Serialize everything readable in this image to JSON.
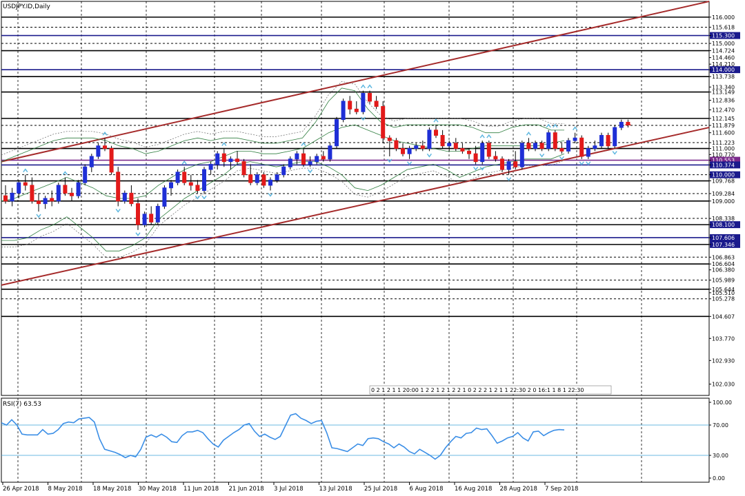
{
  "chart_data": [
    {
      "type": "candlestick",
      "title": "USDJPY.ID,Daily",
      "ylim": [
        101.6,
        116.6
      ],
      "y_ticks": [
        "116.000",
        "115.618",
        "115.300",
        "115.000",
        "114.724",
        "114.460",
        "114.210",
        "114.000",
        "113.738",
        "113.340",
        "113.149",
        "112.836",
        "112.470",
        "112.145",
        "111.879",
        "111.600",
        "111.223",
        "111.000",
        "110.770",
        "110.553",
        "110.374",
        "110.000",
        "109.768",
        "109.284",
        "109.000",
        "108.338",
        "108.100",
        "107.606",
        "107.346",
        "106.863",
        "106.604",
        "106.380",
        "105.989",
        "105.644",
        "105.510",
        "105.278",
        "104.607",
        "103.770",
        "102.930",
        "102.030"
      ],
      "x_labels": [
        "26 Apr 2018",
        "8 May 2018",
        "18 May 2018",
        "30 May 2018",
        "11 Jun 2018",
        "21 Jun 2018",
        "3 Jul 2018",
        "13 Jul 2018",
        "25 Jul 2018",
        "6 Aug 2018",
        "16 Aug 2018",
        "28 Aug 2018",
        "7 Sep 2018"
      ],
      "horizontal_levels": [
        {
          "value": 116.0,
          "color": "#000000"
        },
        {
          "value": 115.618,
          "color": "#000000",
          "dashed": true
        },
        {
          "value": 115.3,
          "color": "#1a1a8c"
        },
        {
          "value": 115.0,
          "color": "#000000",
          "dashed": true
        },
        {
          "value": 114.724,
          "color": "#000000"
        },
        {
          "value": 114.0,
          "color": "#1a1a8c"
        },
        {
          "value": 113.738,
          "color": "#000000"
        },
        {
          "value": 113.149,
          "color": "#000000"
        },
        {
          "value": 112.145,
          "color": "#000000"
        },
        {
          "value": 111.879,
          "color": "#000000",
          "dashed": true
        },
        {
          "value": 111.223,
          "color": "#000000",
          "dashed": true
        },
        {
          "value": 111.0,
          "color": "#000000"
        },
        {
          "value": 110.553,
          "color": "#7b2a8c"
        },
        {
          "value": 110.374,
          "color": "#1a1a8c"
        },
        {
          "value": 110.0,
          "color": "#000000",
          "dashed": true
        },
        {
          "value": 109.768,
          "color": "#000000"
        },
        {
          "value": 109.284,
          "color": "#000000",
          "dashed": true
        },
        {
          "value": 109.0,
          "color": "#000000"
        },
        {
          "value": 108.338,
          "color": "#000000",
          "dashed": true
        },
        {
          "value": 108.1,
          "color": "#000000"
        },
        {
          "value": 107.606,
          "color": "#1a1a8c"
        },
        {
          "value": 107.346,
          "color": "#000000"
        },
        {
          "value": 106.863,
          "color": "#000000",
          "dashed": true
        },
        {
          "value": 106.604,
          "color": "#000000"
        },
        {
          "value": 105.989,
          "color": "#000000",
          "dashed": true
        },
        {
          "value": 105.644,
          "color": "#000000"
        },
        {
          "value": 105.278,
          "color": "#000000",
          "dashed": true
        },
        {
          "value": 104.607,
          "color": "#000000"
        }
      ],
      "highlighted_price_labels": {
        "115.300": "#1a1a8c",
        "114.000": "#1a1a8c",
        "110.553": "#7b2a8c",
        "110.374": "#1a1a8c",
        "110.000": "#1a1a8c",
        "108.100": "#1a1a8c",
        "107.606": "#1a1a8c",
        "107.346": "#1a1a8c"
      },
      "channel_lines": [
        {
          "from": [
            0,
            110.5
          ],
          "to": [
            107,
            116.6
          ],
          "color": "#a52a2a"
        },
        {
          "from": [
            0,
            105.8
          ],
          "to": [
            107,
            111.8
          ],
          "color": "#a52a2a"
        }
      ],
      "candles": [
        {
          "o": 109.2,
          "h": 109.6,
          "l": 108.9,
          "c": 109.0
        },
        {
          "o": 109.0,
          "h": 109.5,
          "l": 108.8,
          "c": 109.3
        },
        {
          "o": 109.3,
          "h": 109.8,
          "l": 109.1,
          "c": 109.7
        },
        {
          "o": 109.7,
          "h": 110.0,
          "l": 109.4,
          "c": 109.6
        },
        {
          "o": 109.6,
          "h": 109.9,
          "l": 108.9,
          "c": 109.0
        },
        {
          "o": 109.0,
          "h": 109.3,
          "l": 108.6,
          "c": 108.9
        },
        {
          "o": 108.9,
          "h": 109.2,
          "l": 108.7,
          "c": 109.1
        },
        {
          "o": 109.1,
          "h": 109.4,
          "l": 108.8,
          "c": 109.0
        },
        {
          "o": 109.0,
          "h": 109.7,
          "l": 108.9,
          "c": 109.6
        },
        {
          "o": 109.6,
          "h": 109.9,
          "l": 109.2,
          "c": 109.3
        },
        {
          "o": 109.3,
          "h": 109.5,
          "l": 109.0,
          "c": 109.2
        },
        {
          "o": 109.2,
          "h": 109.8,
          "l": 109.1,
          "c": 109.7
        },
        {
          "o": 109.7,
          "h": 110.4,
          "l": 109.6,
          "c": 110.3
        },
        {
          "o": 110.3,
          "h": 110.8,
          "l": 110.1,
          "c": 110.7
        },
        {
          "o": 110.7,
          "h": 111.2,
          "l": 110.6,
          "c": 111.1
        },
        {
          "o": 111.1,
          "h": 111.4,
          "l": 110.9,
          "c": 111.0
        },
        {
          "o": 111.0,
          "h": 111.1,
          "l": 110.0,
          "c": 110.1
        },
        {
          "o": 110.1,
          "h": 110.3,
          "l": 108.8,
          "c": 109.0
        },
        {
          "o": 109.0,
          "h": 109.4,
          "l": 108.9,
          "c": 109.3
        },
        {
          "o": 109.3,
          "h": 109.6,
          "l": 108.8,
          "c": 108.9
        },
        {
          "o": 108.9,
          "h": 109.1,
          "l": 107.9,
          "c": 108.1
        },
        {
          "o": 108.1,
          "h": 108.6,
          "l": 108.0,
          "c": 108.5
        },
        {
          "o": 108.5,
          "h": 108.8,
          "l": 108.1,
          "c": 108.2
        },
        {
          "o": 108.2,
          "h": 108.9,
          "l": 108.1,
          "c": 108.8
        },
        {
          "o": 108.8,
          "h": 109.6,
          "l": 108.7,
          "c": 109.5
        },
        {
          "o": 109.5,
          "h": 109.8,
          "l": 109.2,
          "c": 109.7
        },
        {
          "o": 109.7,
          "h": 110.2,
          "l": 109.6,
          "c": 110.1
        },
        {
          "o": 110.1,
          "h": 110.3,
          "l": 109.6,
          "c": 109.7
        },
        {
          "o": 109.7,
          "h": 110.0,
          "l": 109.4,
          "c": 109.6
        },
        {
          "o": 109.6,
          "h": 109.8,
          "l": 109.3,
          "c": 109.4
        },
        {
          "o": 109.4,
          "h": 110.3,
          "l": 109.3,
          "c": 110.2
        },
        {
          "o": 110.2,
          "h": 110.5,
          "l": 110.0,
          "c": 110.4
        },
        {
          "o": 110.4,
          "h": 110.9,
          "l": 110.2,
          "c": 110.8
        },
        {
          "o": 110.8,
          "h": 111.0,
          "l": 110.3,
          "c": 110.5
        },
        {
          "o": 110.5,
          "h": 110.7,
          "l": 110.2,
          "c": 110.6
        },
        {
          "o": 110.6,
          "h": 110.9,
          "l": 110.4,
          "c": 110.5
        },
        {
          "o": 110.5,
          "h": 110.6,
          "l": 109.9,
          "c": 110.0
        },
        {
          "o": 110.0,
          "h": 110.4,
          "l": 109.6,
          "c": 109.7
        },
        {
          "o": 109.7,
          "h": 110.1,
          "l": 109.6,
          "c": 110.0
        },
        {
          "o": 110.0,
          "h": 110.1,
          "l": 109.5,
          "c": 109.6
        },
        {
          "o": 109.6,
          "h": 109.9,
          "l": 109.4,
          "c": 109.8
        },
        {
          "o": 109.8,
          "h": 110.1,
          "l": 109.7,
          "c": 110.0
        },
        {
          "o": 110.0,
          "h": 110.4,
          "l": 109.9,
          "c": 110.3
        },
        {
          "o": 110.3,
          "h": 110.7,
          "l": 110.2,
          "c": 110.6
        },
        {
          "o": 110.6,
          "h": 110.9,
          "l": 110.4,
          "c": 110.8
        },
        {
          "o": 110.8,
          "h": 111.0,
          "l": 110.3,
          "c": 110.4
        },
        {
          "o": 110.4,
          "h": 110.7,
          "l": 110.3,
          "c": 110.5
        },
        {
          "o": 110.5,
          "h": 110.8,
          "l": 110.4,
          "c": 110.7
        },
        {
          "o": 110.7,
          "h": 110.9,
          "l": 110.5,
          "c": 110.6
        },
        {
          "o": 110.6,
          "h": 111.2,
          "l": 110.5,
          "c": 111.1
        },
        {
          "o": 111.1,
          "h": 112.2,
          "l": 111.0,
          "c": 112.1
        },
        {
          "o": 112.1,
          "h": 112.9,
          "l": 112.0,
          "c": 112.8
        },
        {
          "o": 112.8,
          "h": 113.0,
          "l": 112.3,
          "c": 112.5
        },
        {
          "o": 112.5,
          "h": 112.8,
          "l": 112.3,
          "c": 112.4
        },
        {
          "o": 112.4,
          "h": 113.2,
          "l": 112.3,
          "c": 113.1
        },
        {
          "o": 113.1,
          "h": 113.2,
          "l": 112.7,
          "c": 112.8
        },
        {
          "o": 112.8,
          "h": 113.0,
          "l": 112.5,
          "c": 112.6
        },
        {
          "o": 112.6,
          "h": 112.8,
          "l": 111.2,
          "c": 111.4
        },
        {
          "o": 111.4,
          "h": 111.5,
          "l": 110.7,
          "c": 111.3
        },
        {
          "o": 111.3,
          "h": 111.4,
          "l": 110.9,
          "c": 111.0
        },
        {
          "o": 111.0,
          "h": 111.2,
          "l": 110.7,
          "c": 110.8
        },
        {
          "o": 110.8,
          "h": 111.1,
          "l": 110.6,
          "c": 111.0
        },
        {
          "o": 111.0,
          "h": 111.2,
          "l": 110.9,
          "c": 111.1
        },
        {
          "o": 111.1,
          "h": 111.3,
          "l": 110.9,
          "c": 111.0
        },
        {
          "o": 111.0,
          "h": 111.8,
          "l": 110.9,
          "c": 111.7
        },
        {
          "o": 111.7,
          "h": 111.9,
          "l": 111.4,
          "c": 111.5
        },
        {
          "o": 111.5,
          "h": 111.7,
          "l": 111.0,
          "c": 111.1
        },
        {
          "o": 111.1,
          "h": 111.3,
          "l": 110.9,
          "c": 111.2
        },
        {
          "o": 111.2,
          "h": 111.4,
          "l": 110.9,
          "c": 111.0
        },
        {
          "o": 111.0,
          "h": 111.2,
          "l": 110.8,
          "c": 110.9
        },
        {
          "o": 110.9,
          "h": 111.0,
          "l": 110.6,
          "c": 110.8
        },
        {
          "o": 110.8,
          "h": 111.1,
          "l": 110.4,
          "c": 110.5
        },
        {
          "o": 110.5,
          "h": 111.3,
          "l": 110.4,
          "c": 111.2
        },
        {
          "o": 111.2,
          "h": 111.3,
          "l": 110.6,
          "c": 110.7
        },
        {
          "o": 110.7,
          "h": 110.9,
          "l": 110.5,
          "c": 110.6
        },
        {
          "o": 110.6,
          "h": 110.7,
          "l": 110.1,
          "c": 110.2
        },
        {
          "o": 110.2,
          "h": 110.6,
          "l": 110.0,
          "c": 110.5
        },
        {
          "o": 110.5,
          "h": 110.9,
          "l": 110.2,
          "c": 110.3
        },
        {
          "o": 110.3,
          "h": 111.3,
          "l": 110.2,
          "c": 111.2
        },
        {
          "o": 111.2,
          "h": 111.4,
          "l": 110.9,
          "c": 111.0
        },
        {
          "o": 111.0,
          "h": 111.3,
          "l": 110.9,
          "c": 111.2
        },
        {
          "o": 111.2,
          "h": 111.3,
          "l": 110.9,
          "c": 111.0
        },
        {
          "o": 111.0,
          "h": 111.7,
          "l": 110.9,
          "c": 111.6
        },
        {
          "o": 111.6,
          "h": 111.7,
          "l": 110.9,
          "c": 111.0
        },
        {
          "o": 111.0,
          "h": 111.2,
          "l": 110.8,
          "c": 110.9
        },
        {
          "o": 110.9,
          "h": 111.4,
          "l": 110.8,
          "c": 111.3
        },
        {
          "o": 111.3,
          "h": 111.6,
          "l": 111.2,
          "c": 111.4
        },
        {
          "o": 111.4,
          "h": 111.5,
          "l": 110.6,
          "c": 110.7
        },
        {
          "o": 110.7,
          "h": 111.1,
          "l": 110.6,
          "c": 111.0
        },
        {
          "o": 111.0,
          "h": 111.3,
          "l": 110.9,
          "c": 111.1
        },
        {
          "o": 111.1,
          "h": 111.6,
          "l": 111.0,
          "c": 111.5
        },
        {
          "o": 111.5,
          "h": 111.6,
          "l": 111.0,
          "c": 111.1
        },
        {
          "o": 111.1,
          "h": 111.9,
          "l": 111.0,
          "c": 111.8
        },
        {
          "o": 111.8,
          "h": 112.1,
          "l": 111.7,
          "c": 112.0
        },
        {
          "o": 112.0,
          "h": 112.1,
          "l": 111.8,
          "c": 111.9
        }
      ],
      "bollinger": {
        "color": "#2e7d3e",
        "dashed_color": "#666666",
        "upper": [
          110.5,
          110.7,
          110.9,
          111.1,
          111.3,
          111.4,
          111.4,
          111.4,
          111.3,
          111.1,
          111.0,
          110.8,
          110.9,
          111.1,
          111.3,
          111.4,
          111.3,
          111.4,
          111.4,
          111.3,
          111.2,
          111.2,
          111.3,
          111.4,
          112.0,
          112.8,
          113.3,
          113.2,
          112.5,
          112.0,
          111.8,
          111.9,
          111.9,
          111.9,
          111.9,
          111.9,
          111.8,
          111.6,
          111.6,
          111.8,
          111.9,
          111.9,
          111.7,
          111.7
        ],
        "middle": [
          109.0,
          109.1,
          109.3,
          109.5,
          109.7,
          109.9,
          109.7,
          109.5,
          109.2,
          109.1,
          109.1,
          109.2,
          109.6,
          109.9,
          110.2,
          110.4,
          110.5,
          110.7,
          110.9,
          110.9,
          110.8,
          110.8,
          110.9,
          111.0,
          111.3,
          111.6,
          111.8,
          111.9,
          111.7,
          111.5,
          111.3,
          111.2,
          111.1,
          111.0,
          110.9,
          110.9,
          111.0,
          111.1,
          111.1,
          111.1,
          111.1,
          111.1,
          111.2,
          111.3
        ],
        "lower": [
          107.5,
          107.5,
          107.6,
          107.9,
          108.1,
          108.4,
          108.0,
          107.6,
          107.1,
          107.1,
          107.3,
          107.6,
          108.3,
          108.7,
          109.1,
          109.4,
          109.7,
          110.0,
          110.4,
          110.5,
          110.4,
          110.3,
          110.4,
          110.5,
          110.5,
          110.3,
          110.0,
          109.5,
          109.4,
          109.6,
          109.9,
          110.2,
          110.3,
          110.4,
          110.2,
          109.9,
          110.1,
          110.3,
          110.4,
          110.5,
          110.6,
          110.6,
          110.6,
          110.8
        ]
      },
      "fractal_arrows": {
        "color": "#5fb8e0"
      },
      "timer_strip": "0 2 1 2 1 1 20:00 1 2 2 1 2 1 2 2 1 0 2 2 2 1 2 1 1 22:30 2 0 16:1 1 8   1   22:30"
    },
    {
      "type": "line",
      "title": "RSI(7) 63.53",
      "ylim": [
        0,
        100
      ],
      "y_ticks": [
        "100.00",
        "70.00",
        "30.00",
        "0.00"
      ],
      "levels": [
        70,
        30
      ],
      "line_color": "#3a8ee6",
      "values": [
        73,
        70,
        77,
        70,
        58,
        57,
        57,
        57,
        64,
        58,
        59,
        64,
        72,
        74,
        73,
        78,
        79,
        80,
        74,
        52,
        38,
        36,
        34,
        31,
        27,
        30,
        28,
        38,
        54,
        57,
        54,
        58,
        54,
        48,
        47,
        56,
        61,
        61,
        63,
        60,
        52,
        45,
        41,
        50,
        55,
        60,
        64,
        70,
        72,
        62,
        55,
        58,
        54,
        51,
        55,
        69,
        83,
        85,
        79,
        76,
        72,
        75,
        76,
        60,
        40,
        39,
        37,
        35,
        40,
        45,
        43,
        52,
        53,
        52,
        48,
        45,
        40,
        45,
        41,
        35,
        32,
        38,
        34,
        30,
        25,
        30,
        40,
        48,
        55,
        53,
        59,
        60,
        66,
        64,
        65,
        56,
        46,
        49,
        53,
        55,
        60,
        53,
        49,
        61,
        62,
        56,
        60,
        63,
        64,
        63.5
      ]
    }
  ]
}
